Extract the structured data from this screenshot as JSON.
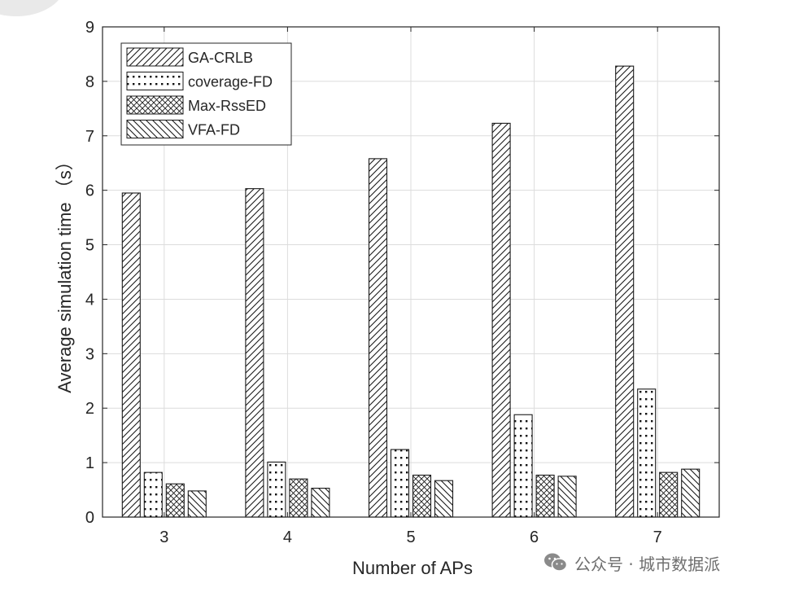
{
  "chart_data": {
    "type": "bar",
    "xlabel": "Number of APs",
    "ylabel": "Average simulation time （s）",
    "ylim": [
      0,
      9
    ],
    "yticks": [
      0,
      1,
      2,
      3,
      4,
      5,
      6,
      7,
      8,
      9
    ],
    "categories": [
      "3",
      "4",
      "5",
      "6",
      "7"
    ],
    "grid": true,
    "legend_position": "top-left",
    "series": [
      {
        "name": "GA-CRLB",
        "pattern": "diagonal-hatch",
        "values": [
          5.95,
          6.03,
          6.58,
          7.23,
          8.28
        ]
      },
      {
        "name": "coverage-FD",
        "pattern": "dots",
        "values": [
          0.82,
          1.01,
          1.24,
          1.88,
          2.35
        ]
      },
      {
        "name": "Max-RssED",
        "pattern": "crosshatch",
        "values": [
          0.61,
          0.7,
          0.77,
          0.77,
          0.82
        ]
      },
      {
        "name": "VFA-FD",
        "pattern": "backslash-hatch",
        "values": [
          0.48,
          0.53,
          0.67,
          0.75,
          0.88
        ]
      }
    ]
  },
  "watermark": {
    "icon": "wechat-icon",
    "text": "公众号 · 城市数据派"
  },
  "colors": {
    "axis": "#262626",
    "grid": "#dcdcdc",
    "bar_fill": "#ffffff",
    "watermark": "#6f6f6f"
  }
}
